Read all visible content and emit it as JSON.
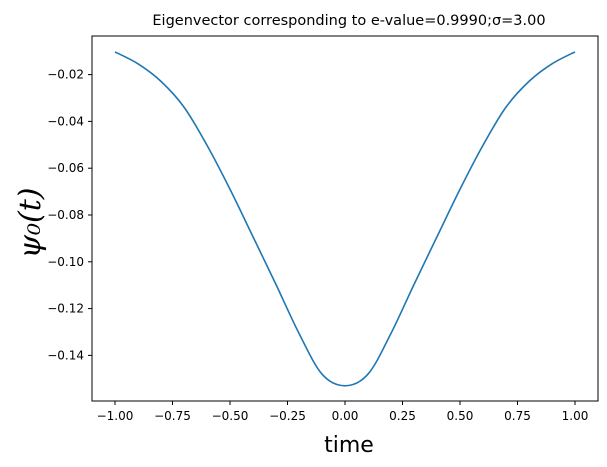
{
  "chart_data": {
    "type": "line",
    "title": "Eigenvector corresponding to e-value=0.9990;σ=3.00",
    "xlabel": "time",
    "ylabel": "ψ₀(t)",
    "xlim": [
      -1.1,
      1.1
    ],
    "ylim": [
      -0.1595,
      -0.0035
    ],
    "x_ticks": [
      -1.0,
      -0.75,
      -0.5,
      -0.25,
      0.0,
      0.25,
      0.5,
      0.75,
      1.0
    ],
    "x_tick_labels": [
      "−1.00",
      "−0.75",
      "−0.50",
      "−0.25",
      "0.00",
      "0.25",
      "0.50",
      "0.75",
      "1.00"
    ],
    "y_ticks": [
      -0.02,
      -0.04,
      -0.06,
      -0.08,
      -0.1,
      -0.12,
      -0.14
    ],
    "y_tick_labels": [
      "−0.02",
      "−0.04",
      "−0.06",
      "−0.08",
      "−0.10",
      "−0.12",
      "−0.14"
    ],
    "grid": false,
    "series": [
      {
        "color": "#1f77b4",
        "x": [
          -1.0,
          -0.9,
          -0.8,
          -0.7,
          -0.6,
          -0.5,
          -0.4,
          -0.3,
          -0.2,
          -0.1,
          0.0,
          0.1,
          0.2,
          0.3,
          0.4,
          0.5,
          0.6,
          0.7,
          0.8,
          0.9,
          1.0
        ],
        "y": [
          -0.0103,
          -0.0154,
          -0.0229,
          -0.0339,
          -0.0502,
          -0.069,
          -0.0893,
          -0.1097,
          -0.1306,
          -0.148,
          -0.153,
          -0.148,
          -0.1306,
          -0.1097,
          -0.0893,
          -0.069,
          -0.0502,
          -0.0339,
          -0.0229,
          -0.0154,
          -0.0103
        ]
      }
    ]
  }
}
